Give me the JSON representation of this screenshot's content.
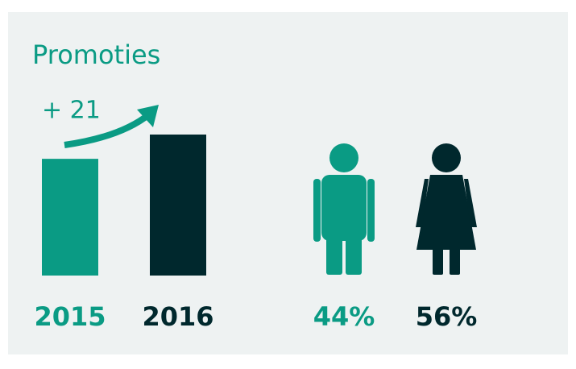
{
  "chart_data": [
    {
      "type": "bar",
      "title": "Promoties",
      "annotation": "+ 21",
      "categories": [
        "2015",
        "2016"
      ],
      "values": [
        101,
        122
      ],
      "colors": [
        "#0a9b84",
        "#00282d"
      ]
    },
    {
      "type": "pictogram",
      "values": [
        44,
        56
      ],
      "value_labels": [
        "44%",
        "56%"
      ],
      "colors": [
        "#0a9b84",
        "#00282d"
      ]
    }
  ]
}
